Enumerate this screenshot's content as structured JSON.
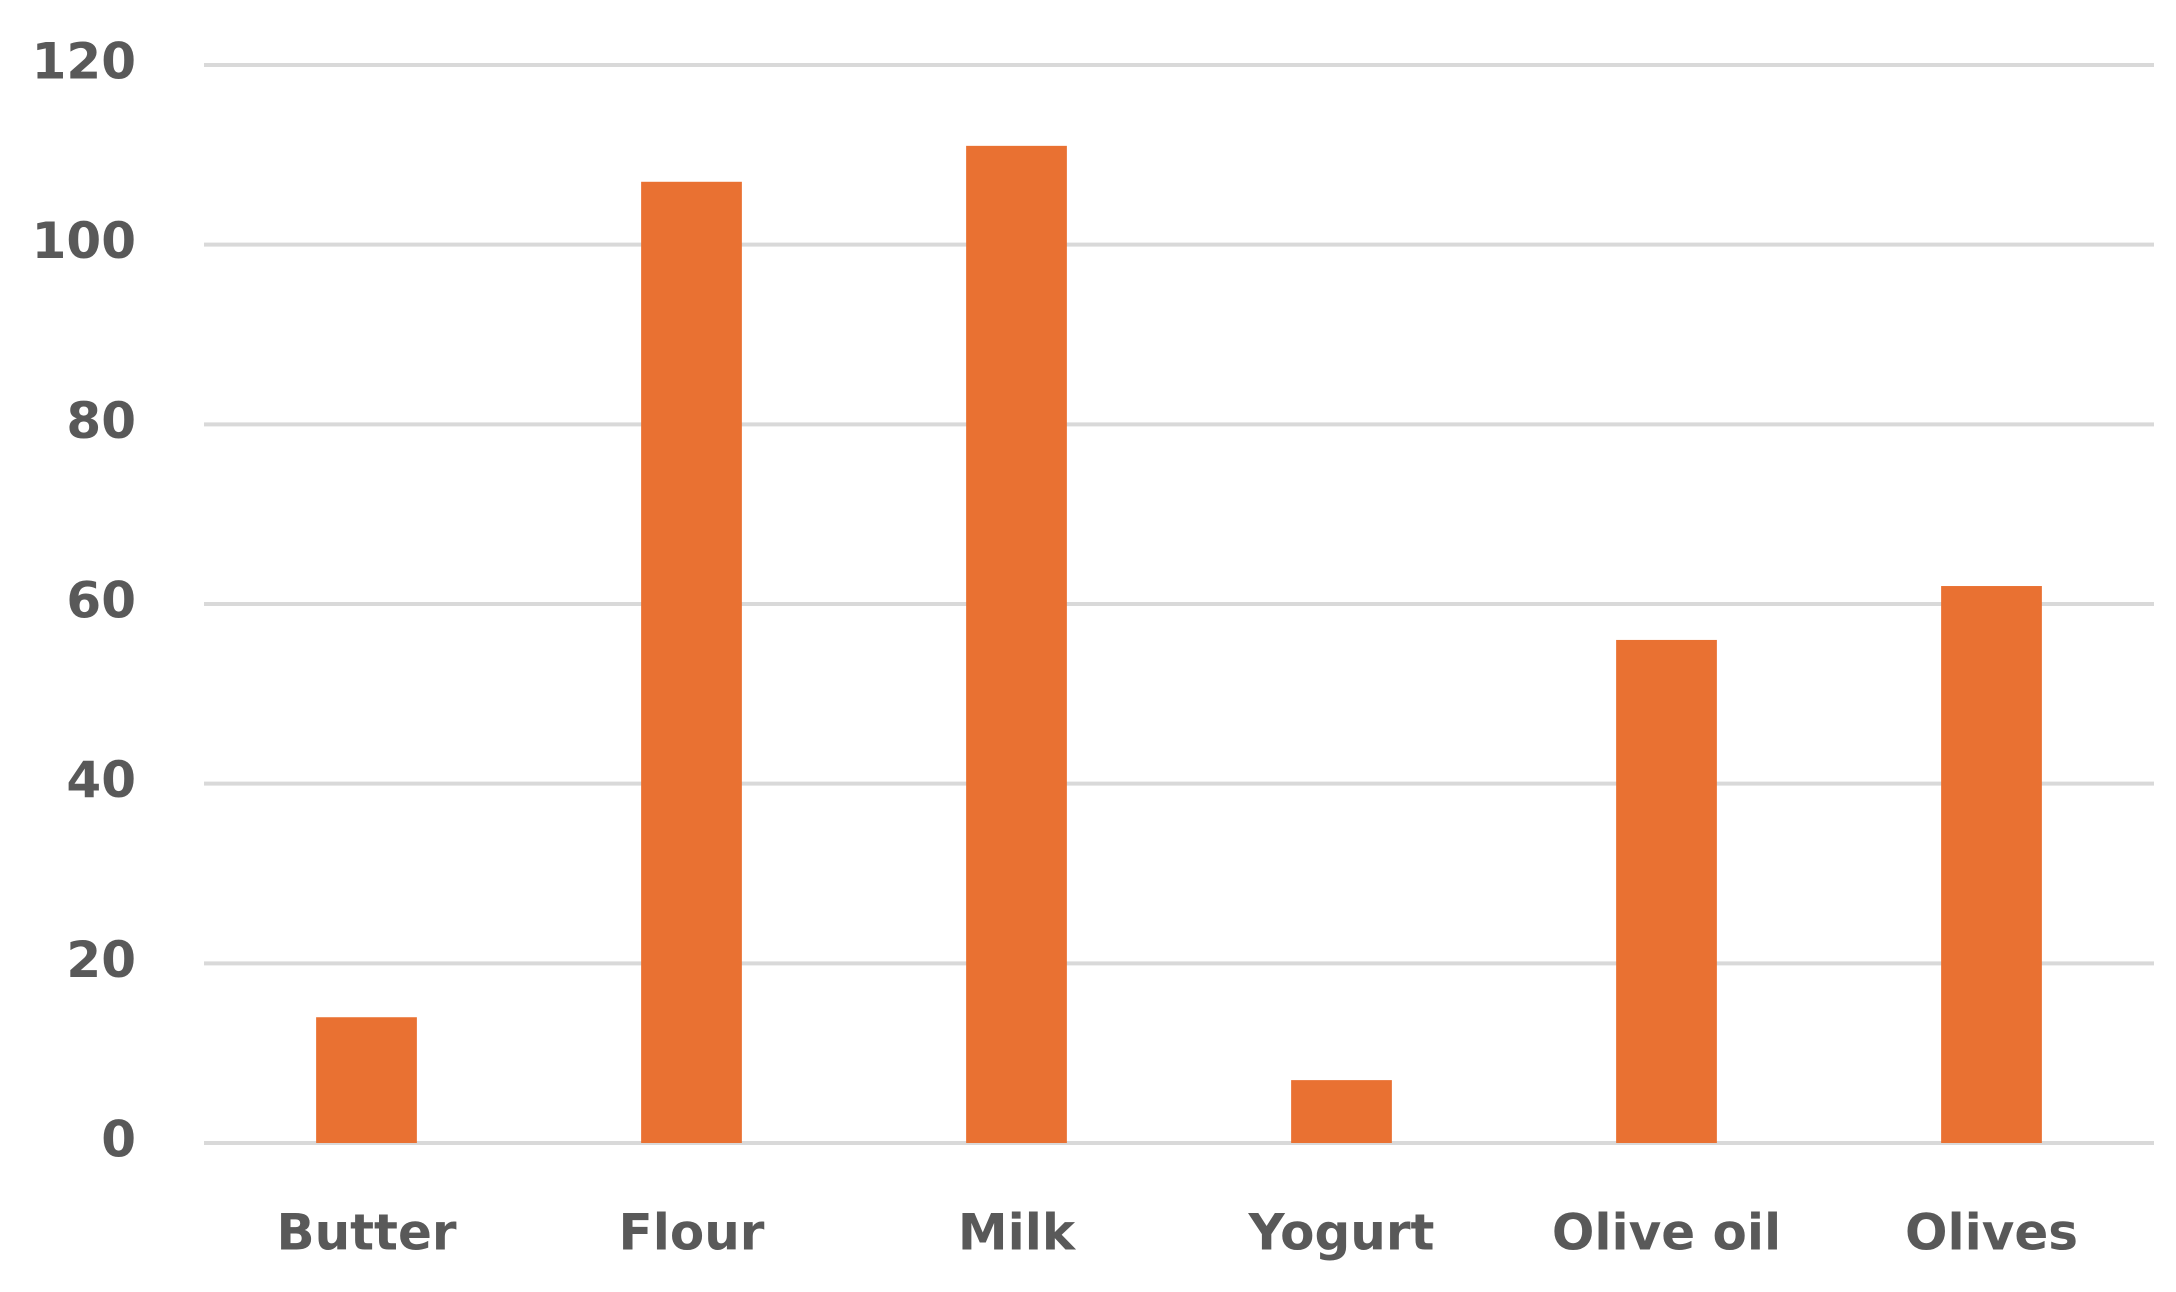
{
  "chart_data": {
    "type": "bar",
    "categories": [
      "Butter",
      "Flour",
      "Milk",
      "Yogurt",
      "Olive oil",
      "Olives"
    ],
    "values": [
      14,
      107,
      111,
      7,
      56,
      62
    ],
    "color": "#e97132",
    "ylim": [
      0,
      120
    ],
    "yticks": [
      0,
      20,
      40,
      60,
      80,
      100,
      120
    ],
    "grid": true
  }
}
